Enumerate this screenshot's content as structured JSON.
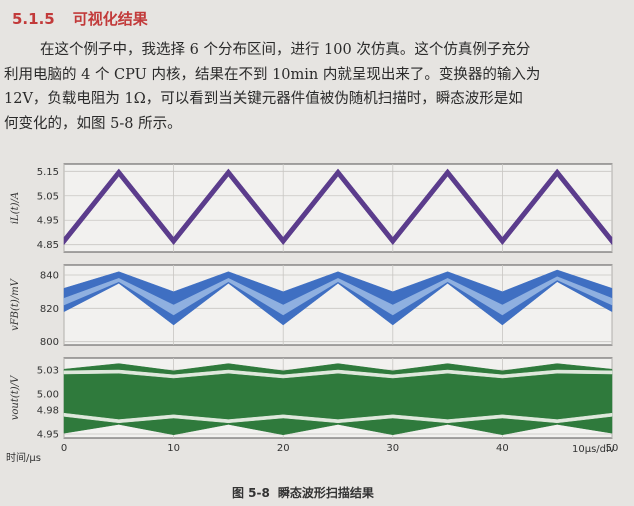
{
  "section": {
    "number": "5.1.5",
    "title": "可视化结果"
  },
  "paragraph": {
    "lines": [
      "在这个例子中，我选择 6 个分布区间，进行 100 次仿真。这个仿真例子充分",
      "利用电脑的 4 个 CPU 内核，结果在不到 10min 内就呈现出来了。变换器的输入为",
      "12V，负载电阻为 1Ω，可以看到当关键元器件值被伪随机扫描时，瞬态波形是如",
      "何变化的，如图 5-8 所示。"
    ]
  },
  "figure": {
    "number": "图 5-8",
    "caption": "瞬态波形扫描结果",
    "x_axis_label": "时间/µs",
    "x_scale_label": "10µs/div"
  },
  "chart_data": [
    {
      "type": "area",
      "ylabel": "iL(t)/A",
      "yticks": [
        5.15,
        5.05,
        4.95,
        4.85
      ],
      "ylim": [
        4.82,
        5.18
      ],
      "xlim": [
        0,
        50
      ],
      "color": "#5b3c8c",
      "x": [
        0,
        5,
        10,
        15,
        20,
        25,
        30,
        35,
        40,
        45,
        50
      ],
      "upper": [
        4.88,
        5.16,
        4.88,
        5.16,
        4.88,
        5.16,
        4.88,
        5.16,
        4.88,
        5.16,
        4.88
      ],
      "lower": [
        4.85,
        5.13,
        4.85,
        5.13,
        4.85,
        5.13,
        4.85,
        5.13,
        4.85,
        5.13,
        4.85
      ]
    },
    {
      "type": "area",
      "ylabel": "vFB(t)/mV",
      "yticks": [
        840,
        820,
        800
      ],
      "ylim": [
        798,
        846
      ],
      "xlim": [
        0,
        50
      ],
      "color": "#3f6fc2",
      "x": [
        0,
        5,
        10,
        15,
        20,
        25,
        30,
        35,
        40,
        45,
        50
      ],
      "upper": [
        832,
        842,
        830,
        842,
        830,
        842,
        830,
        842,
        830,
        843,
        832
      ],
      "lower": [
        818,
        835,
        810,
        835,
        810,
        835,
        810,
        835,
        810,
        836,
        818
      ],
      "inner_upper": [
        826,
        838,
        822,
        838,
        822,
        838,
        822,
        838,
        822,
        839,
        826
      ],
      "inner_lower": [
        822,
        836,
        816,
        836,
        816,
        836,
        816,
        836,
        816,
        837,
        822
      ]
    },
    {
      "type": "area",
      "ylabel": "vout(t)/V",
      "yticks": [
        5.03,
        5.0,
        4.98,
        4.95
      ],
      "ylim": [
        4.945,
        5.045
      ],
      "xlim": [
        0,
        50
      ],
      "xticks": [
        0,
        10,
        20,
        30,
        40,
        50
      ],
      "color": "#2f7a3c",
      "x": [
        0,
        5,
        10,
        15,
        20,
        25,
        30,
        35,
        40,
        45,
        50
      ],
      "upper": [
        5.031,
        5.038,
        5.029,
        5.038,
        5.029,
        5.038,
        5.029,
        5.038,
        5.029,
        5.038,
        5.031
      ],
      "lower": [
        4.951,
        4.962,
        4.949,
        4.962,
        4.949,
        4.962,
        4.949,
        4.962,
        4.949,
        4.962,
        4.951
      ],
      "gap_upper": [
        5.029,
        5.03,
        5.024,
        5.03,
        5.024,
        5.03,
        5.024,
        5.03,
        5.024,
        5.03,
        5.029
      ],
      "gap_lower": [
        5.025,
        5.026,
        5.02,
        5.026,
        5.02,
        5.026,
        5.02,
        5.026,
        5.02,
        5.026,
        5.025
      ],
      "gap2_upper": [
        4.976,
        4.968,
        4.974,
        4.968,
        4.974,
        4.968,
        4.974,
        4.968,
        4.974,
        4.968,
        4.976
      ],
      "gap2_lower": [
        4.972,
        4.964,
        4.97,
        4.964,
        4.97,
        4.964,
        4.97,
        4.964,
        4.97,
        4.964,
        4.972
      ]
    }
  ]
}
